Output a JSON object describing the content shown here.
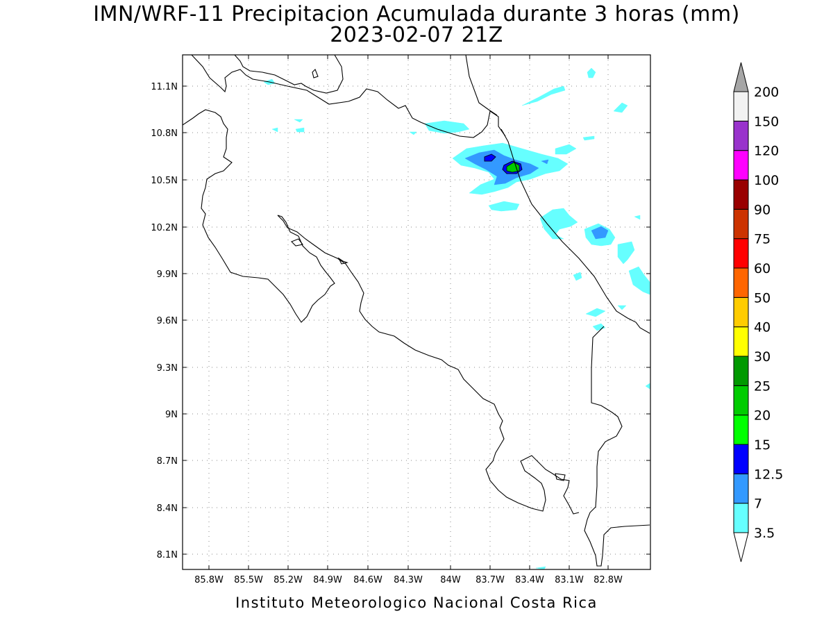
{
  "title": "IMN/WRF-11 Precipitacion Acumulada durante 3 horas (mm)",
  "subtitle": "2023-02-07 21Z",
  "footer": "Instituto Meteorologico Nacional Costa Rica",
  "map": {
    "lon_range": [
      -86.0,
      -82.5
    ],
    "lat_range": [
      8.0,
      11.3
    ],
    "lon_ticks": [
      "85.8W",
      "85.5W",
      "85.2W",
      "84.9W",
      "84.6W",
      "84.3W",
      "84W",
      "83.7W",
      "83.4W",
      "83.1W",
      "82.8W"
    ],
    "lat_ticks": [
      "11.1N",
      "10.8N",
      "10.5N",
      "10.2N",
      "9.9N",
      "9.6N",
      "9.3N",
      "9N",
      "8.7N",
      "8.4N",
      "8.1N"
    ],
    "grid": "dotted"
  },
  "colorbar": {
    "units": "mm",
    "levels": [
      "3.5",
      "7",
      "12.5",
      "15",
      "20",
      "25",
      "30",
      "40",
      "50",
      "60",
      "75",
      "90",
      "100",
      "120",
      "150",
      "200"
    ],
    "colors": [
      "#ffffff",
      "#66ffff",
      "#3399ff",
      "#0000ff",
      "#00ff00",
      "#00cc00",
      "#009900",
      "#ffff00",
      "#ffcc00",
      "#ff6600",
      "#ff0000",
      "#cc3300",
      "#990000",
      "#ff00ff",
      "#9933cc",
      "#f2f2f2",
      "#a6a6a6"
    ]
  },
  "chart_data": {
    "type": "heatmap",
    "title": "IMN/WRF-11 Precipitacion Acumulada durante 3 horas (mm)",
    "subtitle": "2023-02-07 21Z",
    "xlabel": "",
    "ylabel": "",
    "x_ticks": [
      "85.8W",
      "85.5W",
      "85.2W",
      "84.9W",
      "84.6W",
      "84.3W",
      "84W",
      "83.7W",
      "83.4W",
      "83.1W",
      "82.8W"
    ],
    "y_ticks": [
      "11.1N",
      "10.8N",
      "10.5N",
      "10.2N",
      "9.9N",
      "9.6N",
      "9.3N",
      "9N",
      "8.7N",
      "8.4N",
      "8.1N"
    ],
    "levels_mm": [
      3.5,
      7,
      12.5,
      15,
      20,
      25,
      30,
      40,
      50,
      60,
      75,
      90,
      100,
      120,
      150,
      200
    ],
    "max_region": {
      "lon": -83.55,
      "lat": 10.58,
      "category": "15-20 mm"
    }
  },
  "colors": {
    "grid": "#888888",
    "coast": "#000000",
    "light_cyan": "#66ffff",
    "mid_blue": "#3399ff",
    "dark_blue": "#0000ff",
    "green": "#00cc00"
  }
}
